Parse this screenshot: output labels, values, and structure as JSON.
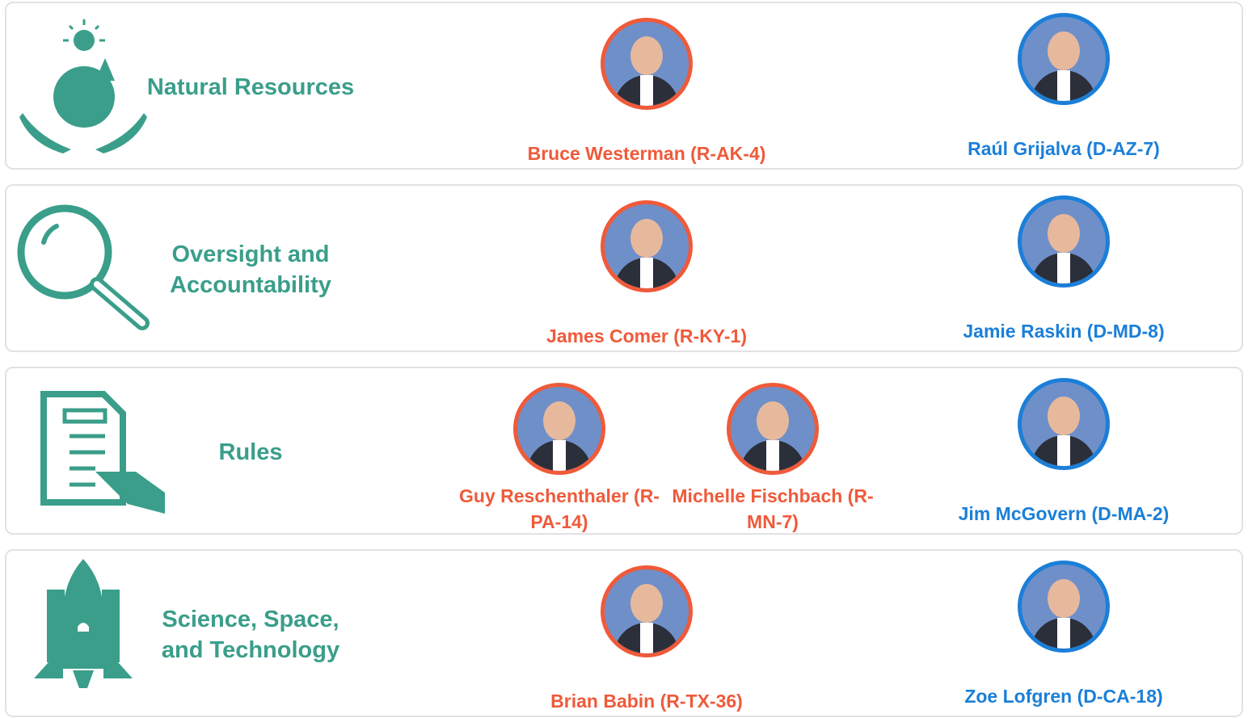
{
  "committees": [
    {
      "name": "Natural Resources",
      "republicans": [
        "Bruce Westerman (R-AK-4)"
      ],
      "democrats": [
        "Raúl Grijalva (D-AZ-7)"
      ]
    },
    {
      "name": "Oversight and Accountability",
      "republicans": [
        "James Comer (R-KY-1)"
      ],
      "democrats": [
        "Jamie Raskin (D-MD-8)"
      ]
    },
    {
      "name": "Rules",
      "republicans": [
        "Guy Reschenthaler (R-PA-14)",
        "Michelle Fischbach (R-MN-7)"
      ],
      "democrats": [
        "Jim McGovern (D-MA-2)"
      ]
    },
    {
      "name": "Science, Space, and Technology",
      "republicans": [
        "Brian Babin (R-TX-36)"
      ],
      "democrats": [
        "Zoe Lofgren (D-CA-18)"
      ]
    }
  ]
}
